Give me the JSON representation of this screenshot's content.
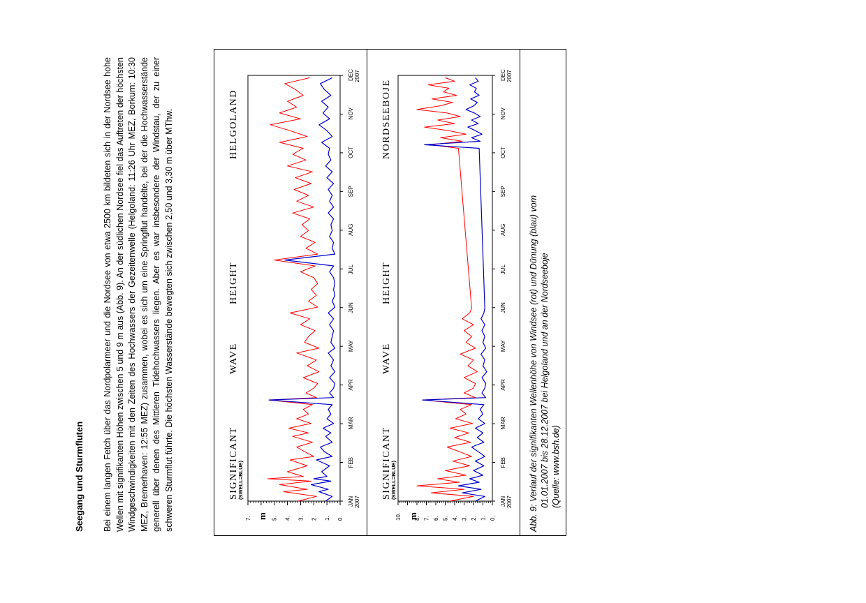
{
  "heading": "Seegang und Sturmfluten",
  "body_text": "Bei einem langen Fetch über das Nordpolarmeer und die Nordsee von etwa 2500 km bildeten sich in der Nordsee hohe Wellen mit signifikanten Höhen zwischen 5 und 9 m aus (Abb. 9). An der südlichen Nordsee fiel das Auftreten der höchsten Windgeschwindigkeiten mit den Zeiten des Hochwassers der Gezeitenwelle (Helgoland: 11:26 Uhr MEZ, Borkum: 10:30 MEZ, Bremerhaven: 12:55 MEZ) zusammen, wobei es sich um eine Springflut handelte, bei der die Hochwasserstände generell über denen des Mittleren Tidehochwassers liegen. Aber es war insbesondere der Windstau, der zu einer schweren Sturmflut führte. Die höchsten Wasserstände bewegten sich zwischen 2,50 und 3,30 m über MThw.",
  "caption": {
    "line1": "Abb. 9: Verlauf der signifikanten Wellenhöhe von Windsee (rot) und Dünung (blau) vom",
    "line2": "01.01.2007 bis 28.12.2007 bei Helgoland und an der Nordseeboje",
    "line3": "(Quelle: www.bsh.de)"
  },
  "colors": {
    "windsee": "#ff0000",
    "duenung": "#0000cc"
  },
  "chart_data": [
    {
      "type": "line",
      "title_words": [
        "SIGNIFICANT",
        "WAVE",
        "HEIGHT",
        "HELGOLAND"
      ],
      "subtitle": "(SWELL=BLUE)",
      "ylabel": "m",
      "ylim": [
        0,
        7
      ],
      "yticks": [
        "0.",
        "1.",
        "2.",
        "3.",
        "4.",
        "5.",
        "",
        "7."
      ],
      "xticks": [
        {
          "label": "JAN",
          "sub": "2007"
        },
        {
          "label": "FEB"
        },
        {
          "label": "MAR"
        },
        {
          "label": "APR"
        },
        {
          "label": "MAY"
        },
        {
          "label": "JUN"
        },
        {
          "label": "JUL"
        },
        {
          "label": "AUG"
        },
        {
          "label": "SEP"
        },
        {
          "label": "OCT"
        },
        {
          "label": "NOV"
        },
        {
          "label": "DEC",
          "sub": "2007"
        }
      ],
      "xlim_days": [
        0,
        362
      ],
      "series": [
        {
          "color": "#ff0000",
          "day": [
            0,
            4,
            8,
            10,
            14,
            17,
            19,
            21,
            25,
            30,
            35,
            38,
            42,
            46,
            50,
            55,
            58,
            62,
            66,
            70,
            74,
            78,
            82,
            86,
            88,
            92,
            96,
            100,
            105,
            110,
            115,
            120,
            126,
            130,
            135,
            140,
            145,
            150,
            155,
            160,
            165,
            170,
            175,
            180,
            185,
            190,
            195,
            200,
            205,
            210,
            215,
            220,
            225,
            230,
            235,
            240,
            245,
            250,
            255,
            260,
            265,
            270,
            275,
            280,
            285,
            290,
            295,
            300,
            305,
            310,
            315,
            320,
            325,
            330,
            335,
            340,
            345,
            350,
            355,
            360
          ],
          "height": [
            3.2,
            1.8,
            4.3,
            2.5,
            4.6,
            2.2,
            5.5,
            2.8,
            4.0,
            2.5,
            3.8,
            2.0,
            2.7,
            3.3,
            2.1,
            3.6,
            2.4,
            3.9,
            2.2,
            3.3,
            2.4,
            2.8,
            2.1,
            5.4,
            1.8,
            2.6,
            2.0,
            1.7,
            2.8,
            1.6,
            2.5,
            1.8,
            3.3,
            1.6,
            2.7,
            2.4,
            1.9,
            3.0,
            2.3,
            3.8,
            1.7,
            2.4,
            1.8,
            2.2,
            1.7,
            2.0,
            3.0,
            1.9,
            5.0,
            1.7,
            2.6,
            1.9,
            3.0,
            2.4,
            2.9,
            2.3,
            3.6,
            2.0,
            3.3,
            2.4,
            3.5,
            2.2,
            3.4,
            2.1,
            4.0,
            2.6,
            3.6,
            2.8,
            4.6,
            2.5,
            3.8,
            5.3,
            3.0,
            4.6,
            3.3,
            4.0,
            2.8,
            3.4,
            4.2,
            2.3
          ]
        },
        {
          "color": "#0000cc",
          "day": [
            0,
            4,
            8,
            10,
            14,
            17,
            19,
            21,
            25,
            30,
            35,
            38,
            42,
            46,
            50,
            55,
            58,
            62,
            66,
            70,
            74,
            78,
            82,
            86,
            88,
            92,
            96,
            100,
            105,
            110,
            115,
            120,
            126,
            130,
            135,
            140,
            145,
            150,
            155,
            160,
            165,
            170,
            175,
            180,
            185,
            190,
            195,
            200,
            205,
            210,
            215,
            220,
            225,
            230,
            235,
            240,
            245,
            250,
            255,
            260,
            265,
            270,
            275,
            280,
            285,
            290,
            295,
            300,
            305,
            310,
            315,
            320,
            325,
            330,
            335,
            340,
            345,
            350,
            355,
            360
          ],
          "height": [
            1.1,
            0.6,
            1.6,
            0.9,
            2.2,
            0.7,
            2.0,
            1.0,
            1.4,
            0.8,
            1.8,
            0.6,
            1.2,
            1.5,
            0.6,
            1.1,
            0.7,
            1.3,
            0.5,
            1.0,
            0.7,
            0.9,
            0.6,
            5.4,
            0.5,
            0.8,
            0.5,
            0.4,
            0.8,
            0.4,
            0.7,
            0.5,
            0.9,
            0.4,
            0.7,
            0.6,
            0.5,
            0.8,
            0.5,
            0.9,
            0.4,
            0.6,
            0.4,
            0.5,
            0.4,
            0.5,
            0.8,
            0.5,
            4.2,
            0.4,
            0.6,
            0.5,
            0.8,
            0.6,
            0.7,
            0.5,
            0.9,
            0.5,
            0.8,
            0.6,
            0.9,
            0.5,
            1.0,
            0.6,
            1.1,
            0.7,
            0.9,
            0.8,
            1.4,
            0.6,
            1.0,
            1.6,
            0.8,
            1.3,
            0.9,
            1.4,
            0.7,
            1.2,
            1.5,
            0.6
          ]
        }
      ]
    },
    {
      "type": "line",
      "title_words": [
        "SIGNIFICANT",
        "WAVE",
        "HEIGHT",
        "NORDSEEBOJE"
      ],
      "subtitle": "(SWELL=BLUE)",
      "ylabel": "m",
      "ylim": [
        0,
        10
      ],
      "yticks": [
        "0.",
        "1.",
        "2.",
        "3.",
        "4.",
        "5.",
        "6.",
        "7.",
        "8.",
        "",
        "10."
      ],
      "xticks": [
        {
          "label": "JAN",
          "sub": "2007"
        },
        {
          "label": "FEB"
        },
        {
          "label": "MAR"
        },
        {
          "label": "APR"
        },
        {
          "label": "MAY"
        },
        {
          "label": "JUN"
        },
        {
          "label": "JUL"
        },
        {
          "label": "AUG"
        },
        {
          "label": "SEP"
        },
        {
          "label": "OCT"
        },
        {
          "label": "NOV"
        },
        {
          "label": "DEC",
          "sub": "2007"
        }
      ],
      "xlim_days": [
        0,
        362
      ],
      "series": [
        {
          "color": "#ff0000",
          "day": [
            0,
            4,
            7,
            10,
            13,
            16,
            19,
            22,
            26,
            30,
            34,
            38,
            42,
            46,
            50,
            54,
            58,
            62,
            66,
            70,
            74,
            78,
            82,
            86,
            88,
            92,
            96,
            100,
            105,
            110,
            115,
            120,
            125,
            130,
            135,
            140,
            145,
            150,
            155,
            160,
            164,
            300,
            303,
            306,
            309,
            312,
            315,
            318,
            321,
            324,
            327,
            330,
            333,
            336,
            339,
            342,
            345,
            348,
            351,
            354,
            357,
            360
          ],
          "height": [
            4.5,
            2.0,
            6.5,
            3.0,
            8.0,
            3.5,
            5.8,
            2.8,
            5.0,
            2.4,
            4.2,
            2.2,
            3.5,
            4.8,
            2.3,
            4.0,
            2.5,
            4.5,
            2.1,
            3.9,
            2.8,
            3.4,
            2.2,
            7.4,
            1.8,
            3.0,
            2.0,
            1.8,
            3.0,
            1.6,
            2.6,
            2.0,
            3.4,
            1.8,
            2.8,
            2.2,
            3.0,
            2.0,
            3.2,
            2.4,
            2.2,
            3.6,
            6.5,
            3.2,
            5.5,
            2.8,
            4.6,
            7.2,
            4.0,
            5.8,
            3.4,
            4.8,
            8.0,
            5.6,
            4.2,
            6.4,
            3.8,
            5.2,
            4.6,
            6.8,
            4.0,
            5.0
          ]
        },
        {
          "color": "#0000cc",
          "day": [
            0,
            4,
            7,
            10,
            13,
            16,
            19,
            22,
            26,
            30,
            34,
            38,
            42,
            46,
            50,
            54,
            58,
            62,
            66,
            70,
            74,
            78,
            82,
            86,
            88,
            92,
            96,
            100,
            105,
            110,
            115,
            120,
            125,
            130,
            135,
            140,
            145,
            150,
            155,
            160,
            164,
            300,
            303,
            306,
            309,
            312,
            315,
            318,
            321,
            324,
            327,
            330,
            333,
            336,
            339,
            342,
            345,
            348,
            351,
            354,
            357,
            360
          ],
          "height": [
            1.8,
            0.8,
            3.2,
            1.2,
            3.6,
            1.4,
            2.4,
            1.0,
            2.0,
            0.9,
            1.8,
            0.8,
            1.5,
            2.2,
            0.9,
            1.6,
            1.0,
            1.8,
            0.8,
            1.5,
            1.0,
            1.3,
            0.9,
            7.4,
            0.7,
            1.1,
            0.8,
            0.7,
            1.1,
            0.6,
            1.0,
            0.8,
            1.2,
            0.7,
            1.0,
            0.8,
            1.1,
            0.8,
            1.2,
            0.9,
            0.8,
            1.4,
            7.2,
            1.3,
            2.2,
            1.1,
            1.8,
            2.6,
            1.5,
            2.2,
            1.3,
            1.9,
            2.8,
            2.0,
            1.6,
            2.3,
            1.4,
            1.9,
            1.7,
            2.4,
            1.5,
            1.8
          ]
        }
      ]
    }
  ]
}
